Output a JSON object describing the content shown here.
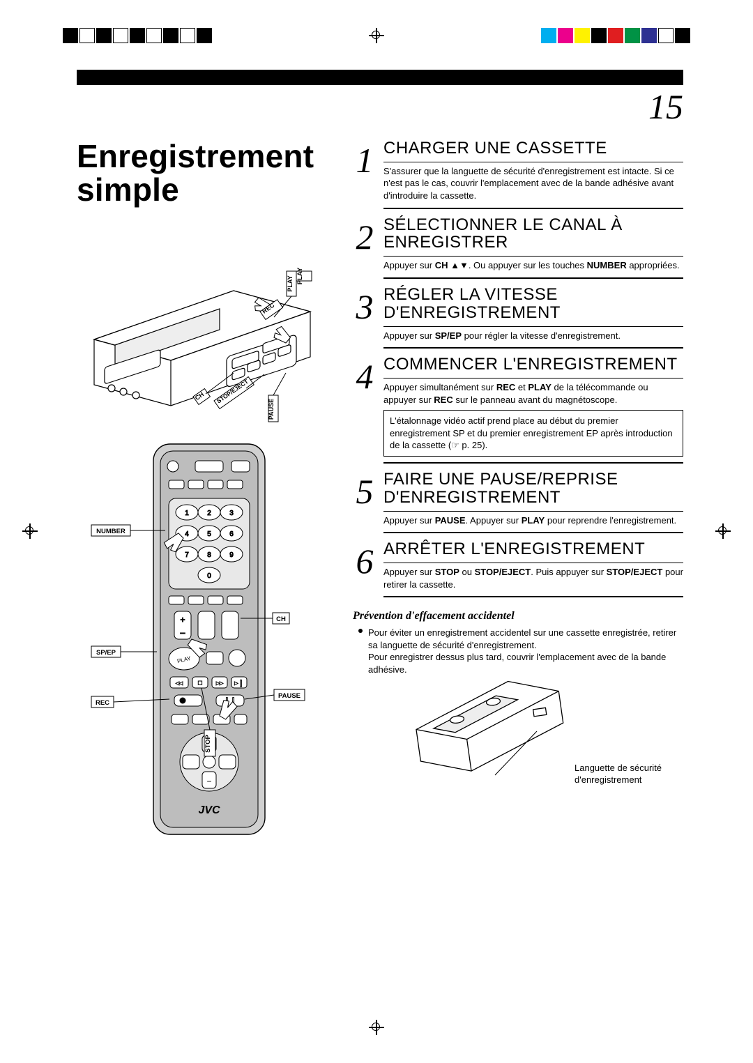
{
  "page_number": "15",
  "main_title_l1": "Enregistrement",
  "main_title_l2": "simple",
  "registration": {
    "top_left_colors": [
      "#000",
      "#fff",
      "#000",
      "#fff",
      "#000",
      "#fff",
      "#000",
      "#fff",
      "#000"
    ],
    "top_right_colors": [
      "#00aeef",
      "#ec008c",
      "#fff200",
      "#000",
      "#e01e20",
      "#009245",
      "#2e3192",
      "#fff",
      "#000"
    ]
  },
  "vcr_labels": {
    "play": "PLAY",
    "rec": "REC",
    "ch": "CH",
    "stop_eject": "STOP/EJECT",
    "pause": "PAUSE"
  },
  "remote_labels": {
    "number": "NUMBER",
    "sp_ep": "SP/EP",
    "rec": "REC",
    "ch": "CH",
    "pause": "PAUSE",
    "play": "PLAY",
    "stop": "STOP",
    "brand": "JVC"
  },
  "steps": [
    {
      "num": "1",
      "title": "CHARGER UNE CASSETTE",
      "text": "S'assurer que la languette de sécurité d'enregistrement est intacte. Si ce n'est pas le cas, couvrir l'emplacement avec de la bande adhésive avant d'introduire la cassette."
    },
    {
      "num": "2",
      "title": "SÉLECTIONNER LE CANAL À ENREGISTRER",
      "text_pre": "Appuyer sur ",
      "text_b1": "CH",
      "text_mid": " ▲▼. Ou appuyer sur les touches ",
      "text_b2": "NUMBER",
      "text_post": " appropriées."
    },
    {
      "num": "3",
      "title": "RÉGLER LA VITESSE D'ENREGISTREMENT",
      "text_pre": "Appuyer sur ",
      "text_b1": "SP/EP",
      "text_post": " pour régler la vitesse d'enregistrement."
    },
    {
      "num": "4",
      "title": "COMMENCER L'ENREGISTREMENT",
      "text_pre": "Appuyer simultanément sur ",
      "text_b1": "REC",
      "text_mid1": " et ",
      "text_b2": "PLAY",
      "text_mid2": " de la télécommande ou appuyer sur ",
      "text_b3": "REC",
      "text_post": " sur le panneau avant du magnétoscope.",
      "note": "L'étalonnage vidéo actif prend place au début du premier enregistrement SP et du premier enregistrement EP après introduction de la cassette (☞ p. 25)."
    },
    {
      "num": "5",
      "title": "FAIRE UNE PAUSE/REPRISE D'ENREGISTREMENT",
      "text_pre": "Appuyer sur ",
      "text_b1": "PAUSE",
      "text_mid": ". Appuyer sur ",
      "text_b2": "PLAY",
      "text_post": " pour reprendre l'enregistrement."
    },
    {
      "num": "6",
      "title": "ARRÊTER L'ENREGISTREMENT",
      "text_pre": "Appuyer sur ",
      "text_b1": "STOP",
      "text_mid1": " ou ",
      "text_b2": "STOP/EJECT",
      "text_mid2": ". Puis appuyer sur ",
      "text_b3": "STOP/EJECT",
      "text_post": " pour retirer la cassette."
    }
  ],
  "prevention": {
    "title": "Prévention d'effacement accidentel",
    "p1": "Pour éviter un enregistrement accidentel sur une cassette enregistrée, retirer sa languette de sécurité d'enregistrement.",
    "p2": "Pour enregistrer dessus plus tard, couvrir l'emplacement avec de la bande adhésive.",
    "label": "Languette de sécurité d'enregistrement"
  },
  "colors": {
    "text": "#000000",
    "bg": "#ffffff"
  }
}
